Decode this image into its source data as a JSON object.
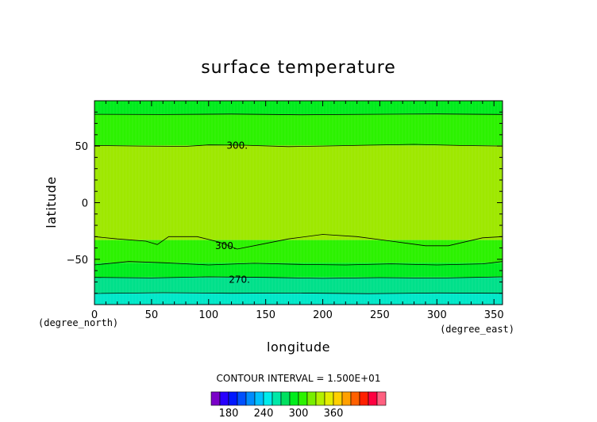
{
  "chart_data": {
    "type": "heatmap",
    "title": "surface temperature",
    "xlabel": "longitude",
    "ylabel": "latitude",
    "x_unit": "(degree_east)",
    "y_unit": "(degree_north)",
    "xlim": [
      0,
      357.5
    ],
    "ylim": [
      -90,
      90
    ],
    "x_ticks": [
      0,
      50,
      100,
      150,
      200,
      250,
      300,
      350
    ],
    "y_ticks": [
      -50,
      0,
      50
    ],
    "contour_interval_text": "CONTOUR INTERVAL = 1.500E+01",
    "contour_labels": [
      {
        "text": "300.",
        "x": 125,
        "lat": 50.5
      },
      {
        "text": "300.",
        "x": 115,
        "lat": -38
      },
      {
        "text": "270.",
        "x": 127,
        "lat": -68
      }
    ],
    "bands": [
      {
        "lat_from": 90,
        "lat_to": 78,
        "color": "#00ec1c"
      },
      {
        "lat_from": 78,
        "lat_to": 50.5,
        "color": "#2cf200"
      },
      {
        "lat_from": 50.5,
        "lat_to": -33,
        "color": "#9ee800"
      },
      {
        "lat_from": -33,
        "lat_to": -53,
        "color": "#2cf200"
      },
      {
        "lat_from": -53,
        "lat_to": -66,
        "color": "#00ec1c"
      },
      {
        "lat_from": -66,
        "lat_to": -80,
        "color": "#00e08a"
      },
      {
        "lat_from": -80,
        "lat_to": -90,
        "color": "#00e8c8"
      }
    ],
    "contours": [
      {
        "lat": 78,
        "points": [
          [
            0,
            78
          ],
          [
            60,
            77.8
          ],
          [
            120,
            78.2
          ],
          [
            180,
            77.6
          ],
          [
            240,
            78
          ],
          [
            300,
            78.3
          ],
          [
            357.5,
            77.9
          ]
        ]
      },
      {
        "lat": 50.5,
        "points": [
          [
            0,
            50.5
          ],
          [
            40,
            50
          ],
          [
            80,
            49.7
          ],
          [
            100,
            51
          ],
          [
            130,
            50.8
          ],
          [
            170,
            49.5
          ],
          [
            200,
            50
          ],
          [
            240,
            50.8
          ],
          [
            280,
            51.5
          ],
          [
            320,
            50.5
          ],
          [
            357.5,
            50
          ]
        ]
      },
      {
        "lat": -33,
        "points": [
          [
            0,
            -30
          ],
          [
            20,
            -32
          ],
          [
            45,
            -34
          ],
          [
            55,
            -37
          ],
          [
            65,
            -30
          ],
          [
            90,
            -30
          ],
          [
            110,
            -35
          ],
          [
            125,
            -41
          ],
          [
            145,
            -37
          ],
          [
            170,
            -32
          ],
          [
            200,
            -28
          ],
          [
            230,
            -30
          ],
          [
            260,
            -34
          ],
          [
            290,
            -38
          ],
          [
            310,
            -38
          ],
          [
            340,
            -31
          ],
          [
            357.5,
            -30
          ]
        ]
      },
      {
        "lat": -53,
        "points": [
          [
            0,
            -55
          ],
          [
            30,
            -52
          ],
          [
            60,
            -53
          ],
          [
            100,
            -55
          ],
          [
            140,
            -53.5
          ],
          [
            180,
            -54.5
          ],
          [
            220,
            -55
          ],
          [
            260,
            -54
          ],
          [
            300,
            -55
          ],
          [
            340,
            -54
          ],
          [
            357.5,
            -52
          ]
        ]
      },
      {
        "lat": -66,
        "points": [
          [
            0,
            -66
          ],
          [
            50,
            -66.5
          ],
          [
            100,
            -65.5
          ],
          [
            150,
            -66
          ],
          [
            200,
            -66.8
          ],
          [
            250,
            -66.2
          ],
          [
            300,
            -66.6
          ],
          [
            357.5,
            -65.5
          ]
        ]
      },
      {
        "lat": -80,
        "points": [
          [
            0,
            -80.2
          ],
          [
            60,
            -79.5
          ],
          [
            120,
            -80
          ],
          [
            180,
            -79.8
          ],
          [
            240,
            -80.3
          ],
          [
            300,
            -79.7
          ],
          [
            357.5,
            -80
          ]
        ]
      }
    ],
    "colorbar": {
      "colors": [
        "#7a00c8",
        "#2800ff",
        "#0018ff",
        "#0050ff",
        "#008cff",
        "#00c0ff",
        "#00ecec",
        "#00e8a8",
        "#00e060",
        "#00ec1c",
        "#2cf200",
        "#78ee00",
        "#b4f000",
        "#e4ec00",
        "#ffd000",
        "#ffa000",
        "#ff6000",
        "#ff2000",
        "#ff0040",
        "#ff6080"
      ],
      "tick_labels": [
        "180",
        "240",
        "300",
        "360"
      ],
      "tick_index": [
        2,
        6,
        10,
        14
      ]
    }
  }
}
